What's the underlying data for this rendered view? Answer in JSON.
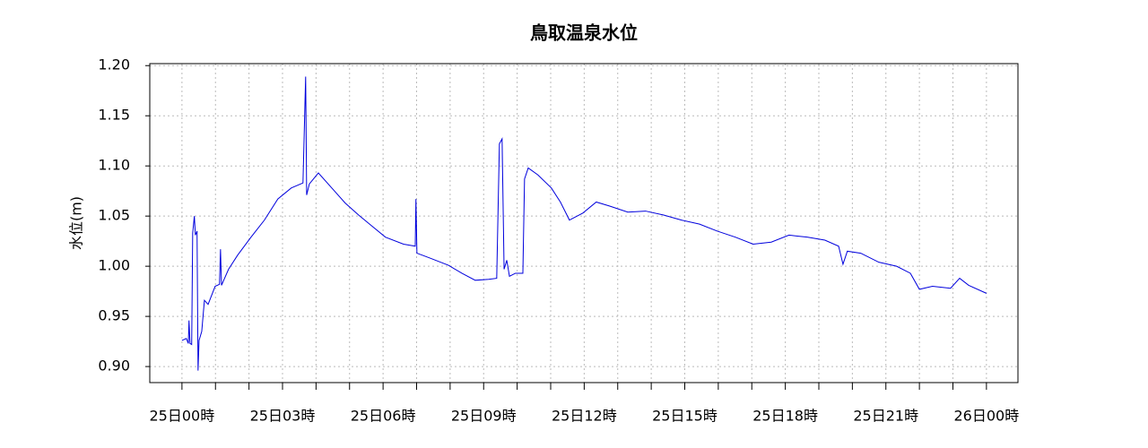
{
  "chart_data": {
    "type": "line",
    "title": "鳥取温泉水位",
    "y_label": "水位(m)",
    "x": [
      0,
      0.13,
      0.19,
      0.21,
      0.24,
      0.29,
      0.32,
      0.37,
      0.4,
      0.45,
      0.48,
      0.51,
      0.59,
      0.67,
      0.78,
      0.99,
      1.12,
      1.15,
      1.18,
      1.39,
      1.66,
      2.06,
      2.46,
      2.86,
      3.26,
      3.61,
      3.69,
      3.72,
      3.8,
      4.07,
      4.47,
      4.87,
      5.27,
      5.67,
      6.07,
      6.61,
      6.96,
      6.98,
      7.01,
      7.41,
      7.95,
      8.35,
      8.75,
      9.15,
      9.39,
      9.47,
      9.55,
      9.61,
      9.69,
      9.77,
      9.95,
      10.17,
      10.22,
      10.33,
      10.62,
      11.02,
      11.29,
      11.56,
      11.96,
      12.36,
      12.76,
      13.3,
      13.83,
      14.37,
      14.9,
      15.44,
      15.97,
      16.51,
      17.04,
      17.58,
      18.11,
      18.65,
      19.18,
      19.59,
      19.72,
      19.85,
      20.25,
      20.79,
      21.32,
      21.73,
      22.0,
      22.39,
      22.93,
      23.2,
      23.47,
      24.0
    ],
    "series": [
      {
        "name": "水位",
        "color": "#0000dd",
        "values": [
          0.926,
          0.928,
          0.923,
          0.946,
          0.923,
          0.922,
          1.033,
          1.05,
          1.031,
          1.035,
          0.896,
          0.926,
          0.935,
          0.966,
          0.962,
          0.98,
          0.982,
          1.017,
          0.981,
          0.997,
          1.011,
          1.029,
          1.046,
          1.067,
          1.078,
          1.083,
          1.189,
          1.071,
          1.082,
          1.093,
          1.078,
          1.063,
          1.051,
          1.04,
          1.029,
          1.022,
          1.02,
          1.067,
          1.013,
          1.008,
          1.001,
          0.993,
          0.986,
          0.987,
          0.988,
          1.122,
          1.127,
          0.997,
          1.006,
          0.99,
          0.993,
          0.993,
          1.087,
          1.098,
          1.091,
          1.078,
          1.064,
          1.046,
          1.053,
          1.064,
          1.06,
          1.054,
          1.055,
          1.051,
          1.046,
          1.042,
          1.035,
          1.029,
          1.022,
          1.024,
          1.031,
          1.029,
          1.026,
          1.02,
          1.002,
          1.015,
          1.013,
          1.004,
          1.0,
          0.993,
          0.977,
          0.98,
          0.978,
          0.988,
          0.981,
          0.973
        ]
      }
    ],
    "xlim": [
      -0.96,
      24.94
    ],
    "xticks": [
      {
        "value": 0,
        "label": "25日00時"
      },
      {
        "value": 3,
        "label": "25日03時"
      },
      {
        "value": 6,
        "label": "25日06時"
      },
      {
        "value": 9,
        "label": "25日09時"
      },
      {
        "value": 12,
        "label": "25日12時"
      },
      {
        "value": 15,
        "label": "25日15時"
      },
      {
        "value": 18,
        "label": "25日18時"
      },
      {
        "value": 21,
        "label": "25日21時"
      },
      {
        "value": 24,
        "label": "26日00時"
      }
    ],
    "x_minor_ticks": [
      1,
      2,
      4,
      5,
      7,
      8,
      10,
      11,
      13,
      14,
      16,
      17,
      19,
      20,
      22,
      23
    ],
    "ylim": [
      0.884,
      1.202
    ],
    "yticks": [
      {
        "value": 0.9,
        "label": "0.90"
      },
      0.95,
      {
        "value": 1.0,
        "label": "1.00"
      },
      1.05,
      {
        "value": 1.1,
        "label": "1.10"
      },
      1.15,
      {
        "value": 1.2,
        "label": "1.20"
      }
    ],
    "grid": true
  }
}
